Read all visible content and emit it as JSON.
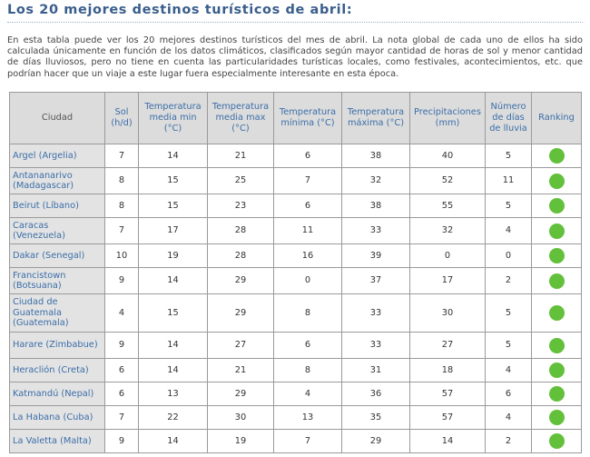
{
  "page": {
    "title": "Los 20 mejores destinos turísticos de abril:",
    "intro": "En esta tabla puede ver los 20 mejores destinos turísticos del mes de abril. La nota global de cada uno de ellos ha sido calculada únicamente en función de los datos climáticos, clasificados según mayor cantidad de horas de sol y menor cantidad de días lluviosos, pero no tiene en cuenta las particularidades turísticas locales, como festivales, acontecimientos, etc. que podrían hacer que un viaje a este lugar fuera especialmente interesante en esta época."
  },
  "table": {
    "headers": {
      "city": "Ciudad",
      "sun": "Sol (h/d)",
      "tmin_avg": "Temperatura media min (°C)",
      "tmax_avg": "Temperatura media max (°C)",
      "tmin": "Temperatura mínima (°C)",
      "tmax": "Temperatura máxima (°C)",
      "precip": "Precipitaciones (mm)",
      "rain_days": "Número de días de lluvia",
      "ranking": "Ranking"
    },
    "ranking_color": "#62c03a",
    "rows": [
      {
        "city": "Argel (Argelia)",
        "sun": "7",
        "tmin_avg": "14",
        "tmax_avg": "21",
        "tmin": "6",
        "tmax": "38",
        "precip": "40",
        "rain_days": "5",
        "ranking": "green-dot"
      },
      {
        "city": "Antananarivo (Madagascar)",
        "sun": "8",
        "tmin_avg": "15",
        "tmax_avg": "25",
        "tmin": "7",
        "tmax": "32",
        "precip": "52",
        "rain_days": "11",
        "ranking": "green-dot"
      },
      {
        "city": "Beirut (Líbano)",
        "sun": "8",
        "tmin_avg": "15",
        "tmax_avg": "23",
        "tmin": "6",
        "tmax": "38",
        "precip": "55",
        "rain_days": "5",
        "ranking": "green-dot"
      },
      {
        "city": "Caracas (Venezuela)",
        "sun": "7",
        "tmin_avg": "17",
        "tmax_avg": "28",
        "tmin": "11",
        "tmax": "33",
        "precip": "32",
        "rain_days": "4",
        "ranking": "green-dot"
      },
      {
        "city": "Dakar (Senegal)",
        "sun": "10",
        "tmin_avg": "19",
        "tmax_avg": "28",
        "tmin": "16",
        "tmax": "39",
        "precip": "0",
        "rain_days": "0",
        "ranking": "green-dot"
      },
      {
        "city": "Francistown (Botsuana)",
        "sun": "9",
        "tmin_avg": "14",
        "tmax_avg": "29",
        "tmin": "0",
        "tmax": "37",
        "precip": "17",
        "rain_days": "2",
        "ranking": "green-dot"
      },
      {
        "city": "Ciudad de Guatemala (Guatemala)",
        "sun": "4",
        "tmin_avg": "15",
        "tmax_avg": "29",
        "tmin": "8",
        "tmax": "33",
        "precip": "30",
        "rain_days": "5",
        "ranking": "green-dot"
      },
      {
        "city": "Harare (Zimbabue)",
        "sun": "9",
        "tmin_avg": "14",
        "tmax_avg": "27",
        "tmin": "6",
        "tmax": "33",
        "precip": "27",
        "rain_days": "5",
        "ranking": "green-dot"
      },
      {
        "city": "Heraclión (Creta)",
        "sun": "6",
        "tmin_avg": "14",
        "tmax_avg": "21",
        "tmin": "8",
        "tmax": "31",
        "precip": "18",
        "rain_days": "4",
        "ranking": "green-dot"
      },
      {
        "city": "Katmandú (Nepal)",
        "sun": "6",
        "tmin_avg": "13",
        "tmax_avg": "29",
        "tmin": "4",
        "tmax": "36",
        "precip": "57",
        "rain_days": "6",
        "ranking": "green-dot"
      },
      {
        "city": "La Habana (Cuba)",
        "sun": "7",
        "tmin_avg": "22",
        "tmax_avg": "30",
        "tmin": "13",
        "tmax": "35",
        "precip": "57",
        "rain_days": "4",
        "ranking": "green-dot"
      },
      {
        "city": "La Valetta (Malta)",
        "sun": "9",
        "tmin_avg": "14",
        "tmax_avg": "19",
        "tmin": "7",
        "tmax": "29",
        "precip": "14",
        "rain_days": "2",
        "ranking": "green-dot"
      }
    ]
  }
}
